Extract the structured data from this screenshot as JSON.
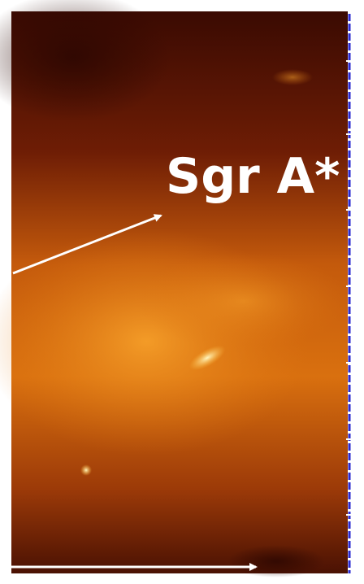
{
  "image": {
    "label": "Sgr A*"
  }
}
